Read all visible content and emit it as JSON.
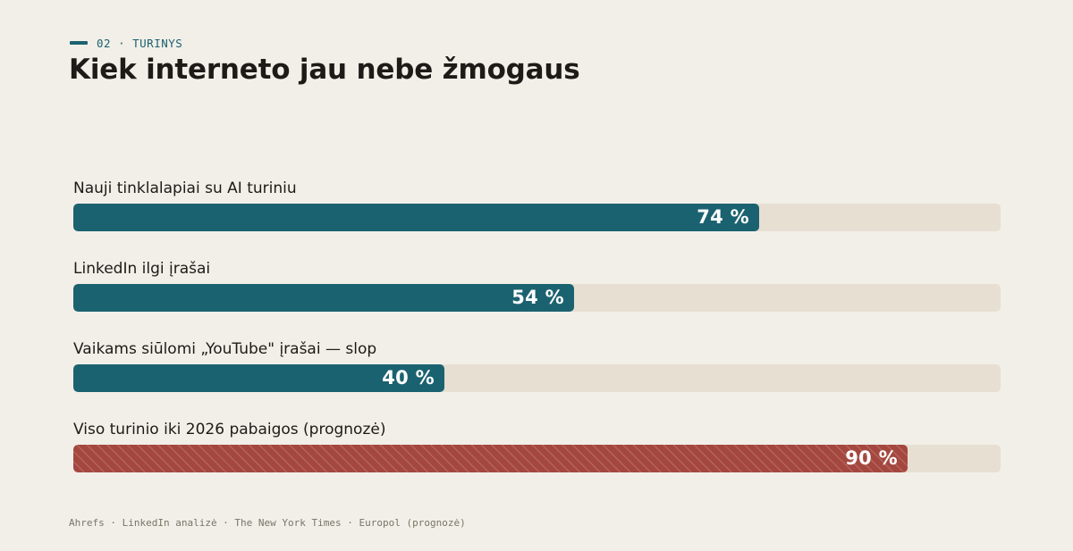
{
  "header": {
    "kicker": "02 · TURINYS",
    "title": "Kiek interneto jau nebe žmogaus"
  },
  "colors": {
    "background": "#f2efe8",
    "accent": "#1b6270",
    "forecast": "#a4473f",
    "track": "#e6dfd2",
    "text": "#1d1b18"
  },
  "chart_data": {
    "type": "bar",
    "orientation": "horizontal",
    "categories": [
      "Nauji tinklalapiai su AI turiniu",
      "LinkedIn ilgi įrašai",
      "Vaikams siūlomi „YouTube\" įrašai — slop",
      "Viso turinio iki 2026 pabaigos (prognozė)"
    ],
    "values": [
      74,
      54,
      40,
      90
    ],
    "value_labels": [
      "74 %",
      "54 %",
      "40 %",
      "90 %"
    ],
    "bar_colors": [
      "#1b6270",
      "#1b6270",
      "#1b6270",
      "#a4473f"
    ],
    "hatched": [
      false,
      false,
      false,
      true
    ],
    "xlim": [
      0,
      100
    ],
    "title": "Kiek interneto jau nebe žmogaus",
    "xlabel": "",
    "ylabel": "",
    "grid": false
  },
  "footer": {
    "source": "Ahrefs · LinkedIn analizė · The New York Times · Europol (prognozė)"
  }
}
